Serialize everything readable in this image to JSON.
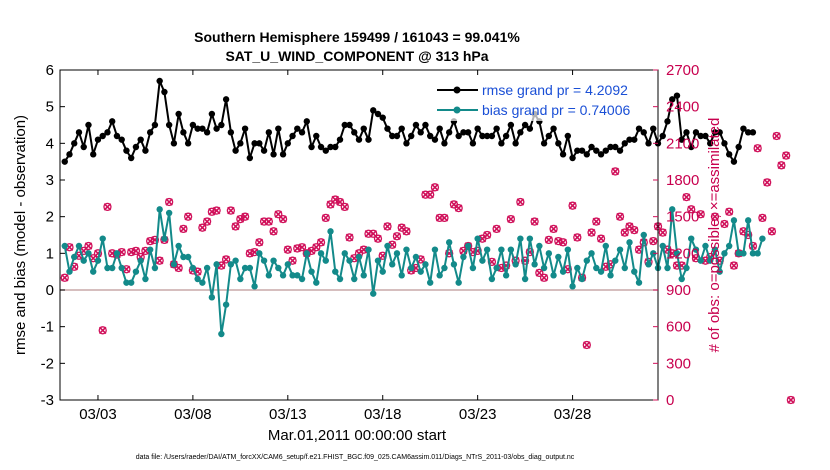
{
  "chart_data": {
    "type": "line",
    "title": "Southern Hemisphere 159499 / 161043 = 99.041%",
    "subtitle": "SAT_U_WIND_COMPONENT @ 313 hPa",
    "xlabel": "Mar.01,2011 00:00:00 start",
    "ylabel_left": "rmse and bias (model - observation)",
    "ylabel_right": "# of obs: o=possible; ×=assimilated",
    "footer": "data file: /Users/raeder/DAI/ATM_forcXX/CAM6_setup/f.e21.FHIST_BGC.f09_025.CAM6assim.011/Diags_NTrS_2011-03/obs_diag_output.nc",
    "xlim": [
      1,
      32.5
    ],
    "ylim_left": [
      -3,
      6
    ],
    "ylim_right": [
      0,
      2700
    ],
    "x_ticks": [
      3,
      8,
      13,
      18,
      23,
      28
    ],
    "x_tick_labels": [
      "03/03",
      "03/08",
      "03/13",
      "03/18",
      "03/23",
      "03/28"
    ],
    "y_left_ticks": [
      -3,
      -2,
      -1,
      0,
      1,
      2,
      3,
      4,
      5,
      6
    ],
    "y_left_tick_labels": [
      "-3",
      "-2",
      "-1",
      "0",
      "1",
      "2",
      "3",
      "4",
      "5",
      "6"
    ],
    "y_right_ticks": [
      0,
      300,
      600,
      900,
      1200,
      1500,
      1800,
      2100,
      2400,
      2700
    ],
    "y_right_tick_labels": [
      "0",
      "300",
      "600",
      "900",
      "1200",
      "1500",
      "1800",
      "2100",
      "2400",
      "2700"
    ],
    "zero_line": 0,
    "colors": {
      "rmse": "#000000",
      "bias": "#138a8a",
      "obs": "#d0105a",
      "zero": "#c9a9a9",
      "legend_text": "#1a4fd6"
    },
    "x_start": 1.25,
    "x_step": 0.25,
    "series": [
      {
        "name": "rmse grand pr = 4.2092",
        "axis": "left",
        "values": [
          3.5,
          3.7,
          4.0,
          4.3,
          3.9,
          4.5,
          3.7,
          4.1,
          4.2,
          4.3,
          4.6,
          4.2,
          4.1,
          3.8,
          3.6,
          3.9,
          4.1,
          3.8,
          4.3,
          4.5,
          5.7,
          5.4,
          4.5,
          4.0,
          4.8,
          4.3,
          4.0,
          4.5,
          4.4,
          4.4,
          4.3,
          4.8,
          4.4,
          4.5,
          5.2,
          4.3,
          3.8,
          4.0,
          4.4,
          3.6,
          4.0,
          4.0,
          3.8,
          4.3,
          3.7,
          4.4,
          3.7,
          4.0,
          4.2,
          4.4,
          4.3,
          4.6,
          3.9,
          4.2,
          3.9,
          3.8,
          3.9,
          3.9,
          4.1,
          4.5,
          4.5,
          4.3,
          4.1,
          4.4,
          4.1,
          4.9,
          4.8,
          4.7,
          4.4,
          4.2,
          4.2,
          4.4,
          4.0,
          4.2,
          4.5,
          4.3,
          4.5,
          4.2,
          4.1,
          4.4,
          4.0,
          4.3,
          4.6,
          4.2,
          4.3,
          4.3,
          4.0,
          4.4,
          4.2,
          4.2,
          4.2,
          4.4,
          4.0,
          4.2,
          4.5,
          4.0,
          4.3,
          4.5,
          4.4,
          4.8,
          4.6,
          4.0,
          4.2,
          4.4,
          4.0,
          3.7,
          4.2,
          3.6,
          3.8,
          3.8,
          3.7,
          3.9,
          3.8,
          3.7,
          3.8,
          3.9,
          3.9,
          3.8,
          4.0,
          4.1,
          4.1,
          4.4,
          4.3,
          4.0,
          4.4,
          4.0,
          4.2,
          4.6,
          5.2,
          5.3,
          4.1,
          4.3,
          3.9,
          4.3,
          4.2,
          4.2,
          4.0,
          4.3,
          4.3,
          4.0,
          3.7,
          3.5,
          3.9,
          4.4,
          4.3,
          4.3
        ]
      },
      {
        "name": "bias grand pr = 0.74006",
        "axis": "left",
        "values": [
          1.2,
          0.5,
          0.9,
          1.2,
          0.8,
          1.0,
          0.5,
          0.8,
          1.4,
          0.6,
          0.6,
          1.0,
          0.6,
          0.2,
          0.2,
          0.5,
          0.8,
          0.3,
          1.1,
          0.6,
          2.2,
          1.4,
          2.1,
          0.7,
          1.2,
          0.9,
          0.9,
          0.6,
          0.3,
          0.2,
          0.6,
          -0.2,
          0.7,
          -1.2,
          -0.4,
          0.7,
          0.8,
          0.3,
          0.6,
          0.6,
          0.1,
          1.0,
          0.8,
          0.4,
          0.8,
          0.6,
          0.4,
          0.7,
          0.4,
          0.4,
          0.3,
          1.0,
          0.5,
          0.2,
          1.0,
          0.8,
          1.6,
          0.5,
          0.3,
          1.0,
          0.8,
          0.3,
          0.9,
          0.4,
          1.1,
          -0.1,
          0.8,
          0.5,
          1.2,
          0.7,
          1.0,
          0.4,
          1.1,
          0.6,
          0.9,
          0.5,
          0.7,
          0.2,
          1.1,
          0.4,
          0.6,
          1.3,
          0.7,
          0.2,
          0.9,
          1.2,
          0.6,
          1.4,
          0.8,
          1.1,
          0.3,
          0.6,
          1.1,
          0.4,
          1.1,
          0.7,
          1.4,
          0.3,
          1.4,
          0.7,
          1.2,
          0.6,
          1.0,
          0.4,
          0.9,
          0.5,
          1.1,
          0.1,
          0.6,
          0.3,
          0.8,
          1.0,
          0.6,
          0.5,
          1.2,
          0.4,
          0.8,
          1.1,
          0.6,
          1.3,
          0.5,
          0.2,
          1.5,
          0.7,
          1.0,
          0.6,
          1.2,
          0.6,
          2.2,
          1.0,
          0.3,
          0.6,
          1.4,
          1.1,
          0.8,
          1.2,
          0.8,
          1.1,
          0.5,
          1.0,
          1.2,
          1.9,
          1.0,
          1.0,
          1.9,
          1.0,
          1.0,
          1.4
        ]
      },
      {
        "name": "# of obs possible",
        "axis": "right",
        "marker": "o",
        "values": [
          1000,
          1250,
          1090,
          1180,
          1220,
          1260,
          1160,
          1200,
          570,
          1580,
          1200,
          1190,
          1210,
          1070,
          1210,
          1220,
          1170,
          1220,
          1300,
          1310,
          1140,
          1310,
          1620,
          1110,
          1080,
          1400,
          1500,
          1060,
          1050,
          1410,
          1460,
          1540,
          1550,
          1100,
          1150,
          1550,
          1420,
          1480,
          1500,
          1200,
          1210,
          1290,
          1460,
          1460,
          1380,
          1520,
          1480,
          1230,
          1140,
          1240,
          1250,
          1200,
          1220,
          1250,
          1290,
          1490,
          1600,
          1640,
          1620,
          1580,
          1330,
          1160,
          1200,
          1230,
          1360,
          1360,
          1320,
          1180,
          1420,
          1270,
          1340,
          1410,
          1380,
          1060,
          1080,
          1150,
          1680,
          1680,
          1740,
          1490,
          1490,
          1200,
          1600,
          1570,
          1220,
          1260,
          1210,
          1220,
          1320,
          1350,
          1130,
          1400,
          1080,
          1100,
          1480,
          1140,
          1620,
          1140,
          1210,
          1460,
          1040,
          1000,
          1310,
          1400,
          1300,
          1290,
          1070,
          1590,
          1330,
          1000,
          450,
          1370,
          1460,
          1320,
          1090,
          1110,
          1870,
          1500,
          1370,
          1420,
          1390,
          1230,
          1290,
          1130,
          1300,
          1420,
          1370,
          1230,
          1200,
          1100,
          1100,
          1660,
          1560,
          1160,
          1520,
          1140,
          1170,
          1500,
          1140,
          1440,
          1540,
          1100,
          1200,
          1380,
          1350,
          1260,
          2060,
          1490,
          1780,
          1380,
          2160,
          1920,
          2000,
          0
        ]
      },
      {
        "name": "# of obs assimilated",
        "axis": "right",
        "marker": "x",
        "values": [
          1000,
          1250,
          1090,
          1180,
          1220,
          1260,
          1160,
          1200,
          570,
          1580,
          1200,
          1190,
          1210,
          1070,
          1210,
          1220,
          1170,
          1220,
          1300,
          1310,
          1140,
          1310,
          1620,
          1110,
          1080,
          1400,
          1500,
          1060,
          1050,
          1410,
          1460,
          1540,
          1550,
          1100,
          1150,
          1550,
          1420,
          1480,
          1500,
          1200,
          1210,
          1290,
          1460,
          1460,
          1380,
          1520,
          1480,
          1230,
          1140,
          1240,
          1250,
          1200,
          1220,
          1250,
          1290,
          1490,
          1600,
          1640,
          1620,
          1580,
          1330,
          1160,
          1200,
          1230,
          1360,
          1360,
          1320,
          1180,
          1420,
          1270,
          1340,
          1410,
          1380,
          1060,
          1080,
          1150,
          1680,
          1680,
          1740,
          1490,
          1490,
          1200,
          1600,
          1570,
          1220,
          1260,
          1210,
          1220,
          1320,
          1350,
          1130,
          1400,
          1080,
          1100,
          1480,
          1140,
          1620,
          1140,
          1210,
          1460,
          1040,
          1000,
          1310,
          1400,
          1300,
          1290,
          1070,
          1590,
          1330,
          1000,
          450,
          1370,
          1460,
          1320,
          1090,
          1110,
          1870,
          1500,
          1370,
          1420,
          1390,
          1230,
          1290,
          1130,
          1300,
          1420,
          1370,
          1230,
          1200,
          1100,
          1100,
          1660,
          1560,
          1160,
          1520,
          1140,
          1170,
          1500,
          1140,
          1440,
          1540,
          1100,
          1200,
          1380,
          1350,
          1260,
          2060,
          1490,
          1780,
          1380,
          2160,
          1920,
          2000,
          0
        ]
      }
    ],
    "legend": {
      "placement": "top-right",
      "entries": [
        "rmse grand pr = 4.2092",
        "bias grand pr = 0.74006"
      ]
    }
  }
}
